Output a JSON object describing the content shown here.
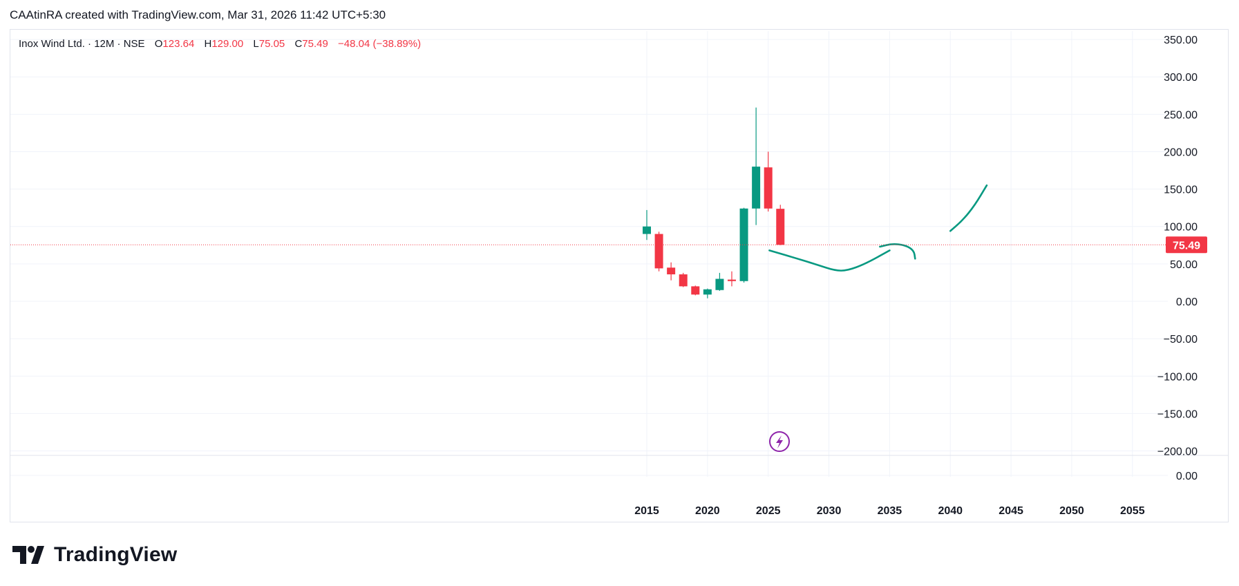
{
  "header": {
    "text": "CAAtinRA created with TradingView.com, Mar 31, 2026 11:42 UTC+5:30"
  },
  "legend": {
    "symbol": "Inox Wind Ltd. · 12M · NSE",
    "open_label": "O",
    "open": "123.64",
    "high_label": "H",
    "high": "129.00",
    "low_label": "L",
    "low": "75.05",
    "close_label": "C",
    "close": "75.49",
    "change": "−48.04 (−38.89%)"
  },
  "footer": {
    "brand": "TradingView"
  },
  "colors": {
    "up": "#089981",
    "down": "#f23645",
    "drawing": "#089981",
    "grid": "#f0f3fa",
    "text": "#131722"
  },
  "chart_data": {
    "type": "candlestick",
    "interval": "12M",
    "y_ticks": [
      "350.00",
      "300.00",
      "250.00",
      "200.00",
      "150.00",
      "100.00",
      "50.00",
      "0.00",
      "−50.00",
      "−100.00",
      "−150.00",
      "−200.00"
    ],
    "ylim": [
      -200,
      350
    ],
    "x_ticks": [
      "2015",
      "2020",
      "2025",
      "2030",
      "2035",
      "2040",
      "2045",
      "2050",
      "2055"
    ],
    "xlim": [
      2015,
      2055
    ],
    "last_price_label": "75.49",
    "last_price": 75.49,
    "volume_pane": {
      "tick": "0.00"
    },
    "candles": [
      {
        "year": 2015,
        "open": 90,
        "high": 122,
        "low": 82,
        "close": 100
      },
      {
        "year": 2016,
        "open": 90,
        "high": 93,
        "low": 40,
        "close": 44
      },
      {
        "year": 2017,
        "open": 45,
        "high": 52,
        "low": 28,
        "close": 36
      },
      {
        "year": 2018,
        "open": 36,
        "high": 38,
        "low": 19,
        "close": 20
      },
      {
        "year": 2019,
        "open": 20,
        "high": 21,
        "low": 8,
        "close": 9
      },
      {
        "year": 2020,
        "open": 9,
        "high": 17,
        "low": 4,
        "close": 16
      },
      {
        "year": 2021,
        "open": 15,
        "high": 38,
        "low": 14,
        "close": 30
      },
      {
        "year": 2022,
        "open": 29,
        "high": 40,
        "low": 20,
        "close": 27
      },
      {
        "year": 2023,
        "open": 27,
        "high": 125,
        "low": 25,
        "close": 124
      },
      {
        "year": 2024,
        "open": 124,
        "high": 259,
        "low": 102,
        "close": 180
      },
      {
        "year": 2025,
        "open": 179,
        "high": 200,
        "low": 120,
        "close": 124
      },
      {
        "year": 2026,
        "open": 123.64,
        "high": 129.0,
        "low": 75.05,
        "close": 75.49
      }
    ],
    "drawings": [
      {
        "points": [
          [
            2025.1,
            68
          ],
          [
            2027,
            59
          ],
          [
            2029,
            49
          ],
          [
            2030.5,
            41
          ],
          [
            2031.5,
            41
          ],
          [
            2033,
            50
          ],
          [
            2035,
            68
          ]
        ]
      },
      {
        "points": [
          [
            2034.2,
            73
          ],
          [
            2035.2,
            77
          ],
          [
            2036.3,
            75
          ],
          [
            2037,
            68
          ],
          [
            2037.1,
            57
          ]
        ]
      },
      {
        "points": [
          [
            2040,
            94
          ],
          [
            2041,
            108
          ],
          [
            2042,
            128
          ],
          [
            2043,
            155
          ]
        ]
      }
    ]
  }
}
